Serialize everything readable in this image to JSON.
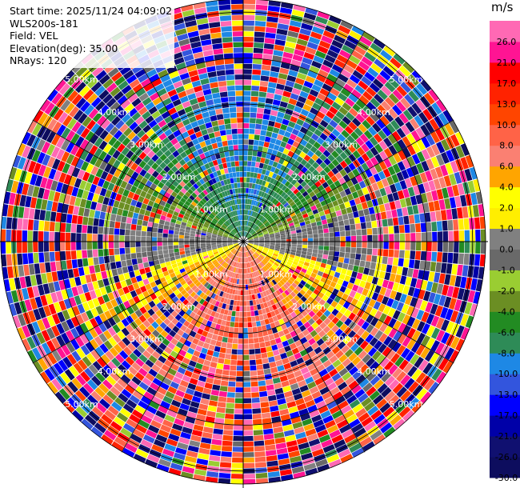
{
  "info": {
    "start_time": "Start time: 2025/11/24 04:09:02",
    "instrument": "WLS200s-181",
    "field": "Field: VEL",
    "elevation": "Elevation(deg): 35.00",
    "nrays": "NRays: 120"
  },
  "chart_data": {
    "type": "heatmap",
    "projection": "polar PPI",
    "field": "VEL",
    "units": "m/s",
    "elevation_deg": 35.0,
    "n_rays": 120,
    "range_max_km": 5.3,
    "range_rings": [
      {
        "km": 1.0,
        "label": "1.00km"
      },
      {
        "km": 2.0,
        "label": "2.00km"
      },
      {
        "km": 3.0,
        "label": "3.00km"
      },
      {
        "km": 4.0,
        "label": "4.00km"
      },
      {
        "km": 5.0,
        "label": "5.00km"
      }
    ],
    "colorbar": {
      "bounds": [
        -30.0,
        -26.0,
        -21.0,
        -17.0,
        -13.0,
        -10.0,
        -8.0,
        -6.0,
        -4.0,
        -2.0,
        -1.0,
        0.0,
        1.0,
        2.0,
        4.0,
        6.0,
        8.0,
        10.0,
        13.0,
        17.0,
        21.0,
        26.0,
        30.0
      ],
      "tick_labels": [
        "-30.0",
        "-26.0",
        "-21.0",
        "-17.0",
        "-13.0",
        "-10.0",
        "-8.0",
        "-6.0",
        "-4.0",
        "-2.0",
        "-1.0",
        "0.0",
        "1.0",
        "2.0",
        "4.0",
        "6.0",
        "8.0",
        "10.0",
        "13.0",
        "17.0",
        "21.0",
        "26.0"
      ],
      "colors": [
        "#0d0d5e",
        "#101070",
        "#0000a8",
        "#0000ff",
        "#3355dd",
        "#1e88e5",
        "#2e8b57",
        "#228b22",
        "#6b8e23",
        "#9acd32",
        "#696969",
        "#808080",
        "#ffee00",
        "#ffff00",
        "#ffa500",
        "#fa8072",
        "#ff6347",
        "#ff4500",
        "#ff2200",
        "#ff0000",
        "#ff1493",
        "#ff69b4"
      ]
    },
    "pattern": {
      "description_free": true,
      "north_sector_velocity": -11,
      "south_sector_velocity": 8,
      "near_surface_zero_band": true
    }
  }
}
